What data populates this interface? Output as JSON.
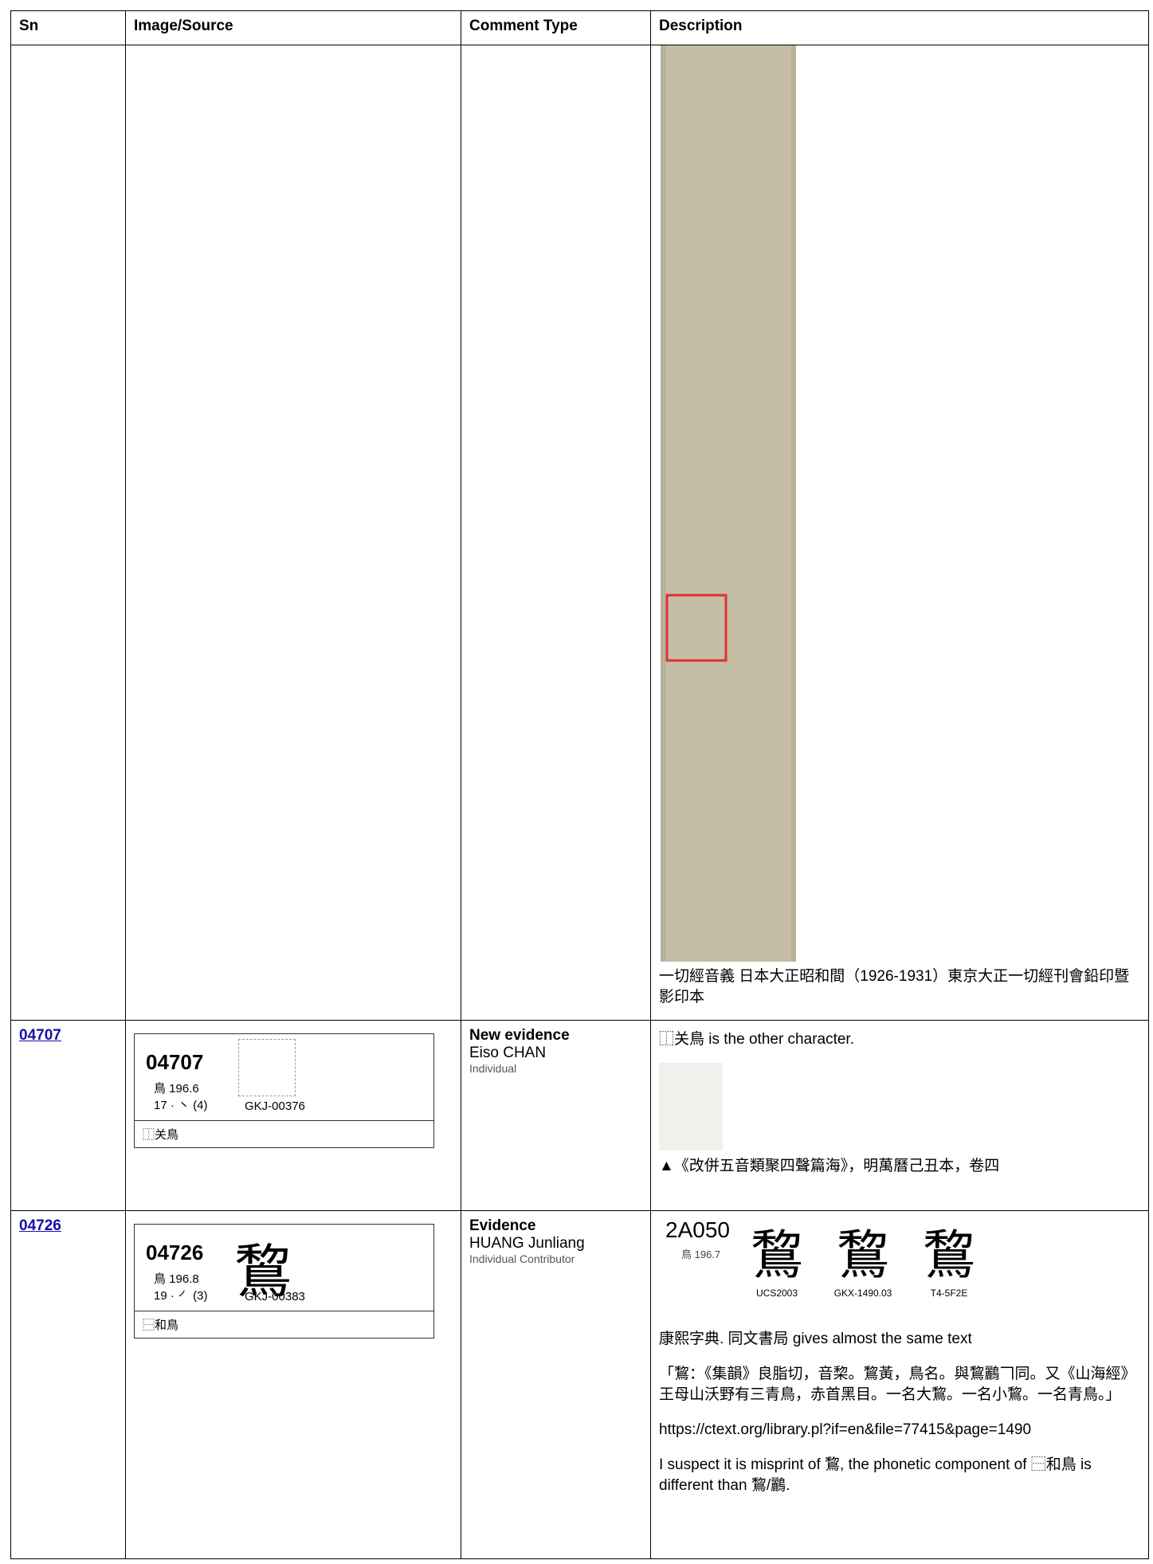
{
  "header": [
    "Sn",
    "Image/Source",
    "Comment Type",
    "Description"
  ],
  "rows": [
    {
      "description": {
        "caption": "一切經音義 日本大正昭和間（1926-1931）東京大正一切經刊會鉛印暨影印本"
      }
    },
    {
      "sn": "04707",
      "card": {
        "id": "04707",
        "radical": "鳥 196.6",
        "strokes": "17 · ㇔ (4)",
        "source": "GKJ-00376",
        "ids": "⿰关鳥"
      },
      "comment": {
        "type": "New evidence",
        "author": "Eiso CHAN",
        "role": "Individual"
      },
      "description": {
        "text": "⿰关鳥 is the other character.",
        "caption": "▲《改併五音類聚四聲篇海》，明萬曆己丑本，卷四"
      }
    },
    {
      "sn": "04726",
      "card": {
        "id": "04726",
        "radical": "鳥 196.8",
        "strokes": "19 · ㇒ (3)",
        "source": "GKJ-00383",
        "ids": "⿱和鳥",
        "glyph": "鵹"
      },
      "comment": {
        "type": "Evidence",
        "author": "HUANG Junliang",
        "role": "Individual Contributor"
      },
      "description": {
        "code": "2A050",
        "radical": "鳥 196.7",
        "glyphs": [
          {
            "char": "鵹",
            "label": "UCS2003"
          },
          {
            "char": "鵹",
            "label": "GKX-1490.03"
          },
          {
            "char": "鵹",
            "label": "T4-5F2E"
          }
        ],
        "paragraphs": [
          "康熙字典. 同文書局 gives almost the same text",
          "「鵹：《集韻》良脂切，音棃。鵹黃，鳥名。與鵹鸝𠃍同。又《山海經》王母山沃野有三青鳥，赤首黑目。一名大鵹。一名小鵹。一名青鳥。」",
          "https://ctext.org/library.pl?if=en&file=77415&page=1490",
          "I suspect it is misprint of 鵹, the phonetic component of ⿱和鳥 is different than 鵹/鸝."
        ]
      }
    }
  ]
}
